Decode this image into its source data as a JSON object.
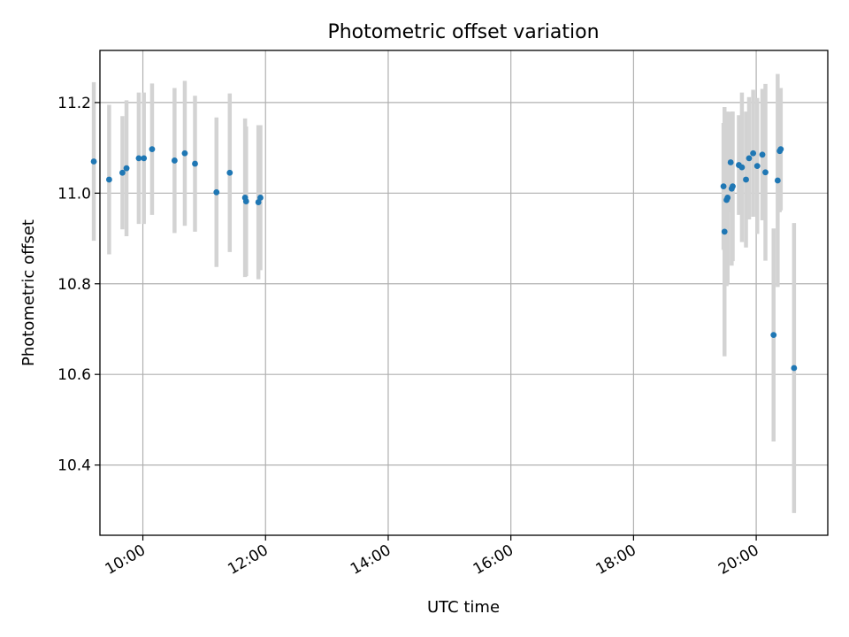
{
  "chart_data": {
    "type": "scatter",
    "title": "Photometric offset variation",
    "xlabel": "UTC time",
    "ylabel": "Photometric offset",
    "x_axis_type": "time",
    "xlim": [
      "09:18",
      "21:10"
    ],
    "ylim": [
      10.245,
      11.315
    ],
    "xticks": [
      "10:00",
      "12:00",
      "14:00",
      "16:00",
      "18:00",
      "20:00"
    ],
    "yticks": [
      "10.4",
      "10.6",
      "10.8",
      "11.0",
      "11.2"
    ],
    "grid": true,
    "marker_color": "#1f77b4",
    "errorbar_color": "#d3d3d3",
    "points": [
      {
        "t": "09:12",
        "y": 11.07,
        "err": 0.175
      },
      {
        "t": "09:27",
        "y": 11.03,
        "err": 0.165
      },
      {
        "t": "09:40",
        "y": 11.045,
        "err": 0.125
      },
      {
        "t": "09:44",
        "y": 11.055,
        "err": 0.15
      },
      {
        "t": "09:56",
        "y": 11.077,
        "err": 0.145
      },
      {
        "t": "10:01",
        "y": 11.077,
        "err": 0.145
      },
      {
        "t": "10:09",
        "y": 11.097,
        "err": 0.145
      },
      {
        "t": "10:31",
        "y": 11.072,
        "err": 0.16
      },
      {
        "t": "10:41",
        "y": 11.088,
        "err": 0.16
      },
      {
        "t": "10:51",
        "y": 11.065,
        "err": 0.15
      },
      {
        "t": "11:12",
        "y": 11.002,
        "err": 0.165
      },
      {
        "t": "11:25",
        "y": 11.045,
        "err": 0.175
      },
      {
        "t": "11:40",
        "y": 10.99,
        "err": 0.175
      },
      {
        "t": "11:41",
        "y": 10.982,
        "err": 0.165
      },
      {
        "t": "11:53",
        "y": 10.98,
        "err": 0.17
      },
      {
        "t": "11:55",
        "y": 10.99,
        "err": 0.16
      },
      {
        "t": "19:28",
        "y": 11.015,
        "err": 0.14
      },
      {
        "t": "19:29",
        "y": 10.915,
        "err": 0.275
      },
      {
        "t": "19:31",
        "y": 10.985,
        "err": 0.19
      },
      {
        "t": "19:32",
        "y": 10.99,
        "err": 0.19
      },
      {
        "t": "19:35",
        "y": 11.068,
        "err": 0.11
      },
      {
        "t": "19:36",
        "y": 11.01,
        "err": 0.17
      },
      {
        "t": "19:37",
        "y": 11.015,
        "err": 0.165
      },
      {
        "t": "19:43",
        "y": 11.062,
        "err": 0.11
      },
      {
        "t": "19:46",
        "y": 11.057,
        "err": 0.165
      },
      {
        "t": "19:50",
        "y": 11.03,
        "err": 0.15
      },
      {
        "t": "19:53",
        "y": 11.077,
        "err": 0.135
      },
      {
        "t": "19:57",
        "y": 11.088,
        "err": 0.14
      },
      {
        "t": "20:01",
        "y": 11.06,
        "err": 0.15
      },
      {
        "t": "20:06",
        "y": 11.085,
        "err": 0.145
      },
      {
        "t": "20:09",
        "y": 11.046,
        "err": 0.195
      },
      {
        "t": "20:17",
        "y": 10.687,
        "err": 0.235
      },
      {
        "t": "20:21",
        "y": 11.028,
        "err": 0.235
      },
      {
        "t": "20:23",
        "y": 11.093,
        "err": 0.135
      },
      {
        "t": "20:24",
        "y": 11.097,
        "err": 0.135
      },
      {
        "t": "20:37",
        "y": 10.614,
        "err": 0.32
      }
    ]
  }
}
